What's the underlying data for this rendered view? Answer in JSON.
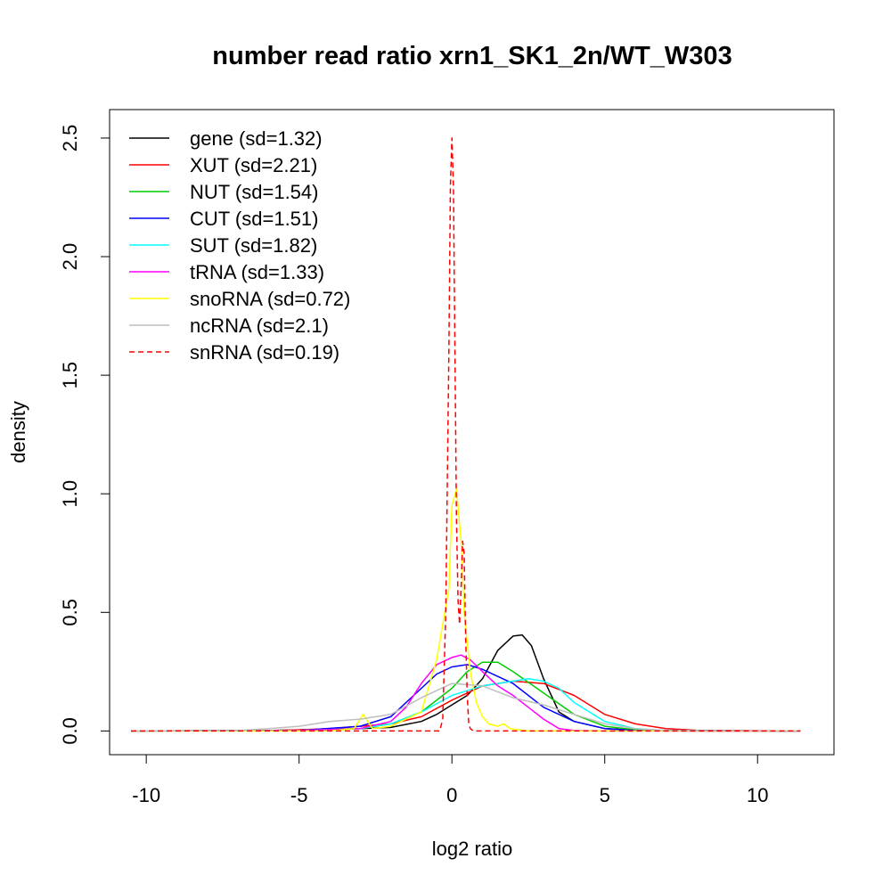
{
  "chart_data": {
    "type": "line",
    "title": "number read ratio xrn1_SK1_2n/WT_W303",
    "xlabel": "log2 ratio",
    "ylabel": "density",
    "xlim": [
      -11.2,
      12.5
    ],
    "ylim": [
      -0.1,
      2.62
    ],
    "x_ticks": [
      -10,
      -5,
      0,
      5,
      10
    ],
    "y_ticks": [
      0.0,
      0.5,
      1.0,
      1.5,
      2.0,
      2.5
    ],
    "x_tick_labels": [
      "-10",
      "-5",
      "0",
      "5",
      "10"
    ],
    "y_tick_labels": [
      "0.0",
      "0.5",
      "1.0",
      "1.5",
      "2.0",
      "2.5"
    ],
    "legend_position": "top-left",
    "grid": false,
    "series": [
      {
        "name": "gene (sd=1.32)",
        "color": "#000000",
        "dash": false,
        "x": [
          -10.5,
          -6,
          -3,
          -2,
          -1,
          -0.5,
          0,
          0.5,
          1,
          1.5,
          2,
          2.3,
          2.6,
          3,
          3.5,
          4,
          5,
          6,
          7,
          8,
          11.4
        ],
        "y": [
          0,
          0.002,
          0.01,
          0.015,
          0.04,
          0.07,
          0.11,
          0.15,
          0.22,
          0.34,
          0.4,
          0.405,
          0.36,
          0.22,
          0.08,
          0.04,
          0.01,
          0.004,
          0.001,
          0,
          0
        ]
      },
      {
        "name": "XUT (sd=2.21)",
        "color": "#ff0000",
        "dash": false,
        "x": [
          -10.5,
          -6,
          -5,
          -4,
          -3,
          -2,
          -1,
          0,
          1,
          2,
          3,
          4,
          5,
          6,
          7,
          8,
          11.4
        ],
        "y": [
          0,
          0.002,
          0.005,
          0.01,
          0.02,
          0.03,
          0.06,
          0.13,
          0.19,
          0.21,
          0.2,
          0.15,
          0.07,
          0.03,
          0.01,
          0.003,
          0
        ]
      },
      {
        "name": "NUT (sd=1.54)",
        "color": "#00cd00",
        "dash": false,
        "x": [
          -10.5,
          -5,
          -3,
          -2,
          -1,
          0,
          0.5,
          1,
          1.5,
          2,
          3,
          4,
          5,
          6,
          7,
          11.4
        ],
        "y": [
          0,
          0.002,
          0.01,
          0.03,
          0.08,
          0.18,
          0.25,
          0.29,
          0.29,
          0.25,
          0.16,
          0.07,
          0.02,
          0.005,
          0.001,
          0
        ]
      },
      {
        "name": "CUT (sd=1.51)",
        "color": "#0000ff",
        "dash": false,
        "x": [
          -10.5,
          -5,
          -3,
          -2,
          -1,
          -0.5,
          0,
          0.5,
          1,
          1.5,
          2,
          3,
          4,
          5,
          6,
          11.4
        ],
        "y": [
          0,
          0.002,
          0.02,
          0.06,
          0.18,
          0.24,
          0.27,
          0.28,
          0.26,
          0.23,
          0.2,
          0.1,
          0.04,
          0.01,
          0.002,
          0
        ]
      },
      {
        "name": "SUT (sd=1.82)",
        "color": "#00ffff",
        "dash": false,
        "x": [
          -10.5,
          -5,
          -3,
          -2,
          -1,
          0,
          1,
          2,
          2.5,
          3,
          3.5,
          4,
          5,
          6,
          7,
          11.4
        ],
        "y": [
          0,
          0.002,
          0.01,
          0.03,
          0.08,
          0.15,
          0.19,
          0.21,
          0.22,
          0.21,
          0.18,
          0.12,
          0.04,
          0.01,
          0.002,
          0
        ]
      },
      {
        "name": "tRNA (sd=1.33)",
        "color": "#ff00ff",
        "dash": false,
        "x": [
          -10.5,
          -5,
          -3,
          -2,
          -1.5,
          -1,
          -0.5,
          0,
          0.3,
          0.6,
          1,
          1.5,
          2,
          2.5,
          3,
          3.5,
          4,
          5,
          11.4
        ],
        "y": [
          0,
          0.002,
          0.01,
          0.04,
          0.1,
          0.2,
          0.28,
          0.31,
          0.32,
          0.3,
          0.25,
          0.19,
          0.15,
          0.1,
          0.05,
          0.01,
          0.002,
          0,
          0
        ]
      },
      {
        "name": "snoRNA (sd=0.72)",
        "color": "#ffff00",
        "dash": false,
        "x": [
          -10.5,
          -4,
          -3.2,
          -2.9,
          -2.6,
          -2,
          -1,
          -0.5,
          -0.3,
          -0.1,
          0,
          0.15,
          0.3,
          0.4,
          0.6,
          0.8,
          1,
          1.2,
          1.5,
          1.7,
          1.9,
          2.2,
          2.5,
          11.4
        ],
        "y": [
          0,
          0,
          0.01,
          0.07,
          0.01,
          0.02,
          0.08,
          0.3,
          0.45,
          0.6,
          0.95,
          1.02,
          0.8,
          0.5,
          0.25,
          0.12,
          0.06,
          0.03,
          0.02,
          0.03,
          0.01,
          0.005,
          0,
          0
        ]
      },
      {
        "name": "ncRNA (sd=2.1)",
        "color": "#bebebe",
        "dash": false,
        "x": [
          -10.5,
          -7,
          -6,
          -5,
          -4,
          -3,
          -2,
          -1,
          0,
          1,
          2,
          3,
          4,
          5,
          6,
          7,
          11.4
        ],
        "y": [
          0,
          0.002,
          0.01,
          0.02,
          0.04,
          0.05,
          0.07,
          0.14,
          0.2,
          0.19,
          0.14,
          0.11,
          0.07,
          0.03,
          0.01,
          0.002,
          0
        ]
      },
      {
        "name": "snRNA (sd=0.19)",
        "color": "#ff0000",
        "dash": true,
        "x": [
          -10.5,
          -0.4,
          -0.3,
          -0.2,
          -0.1,
          -0.05,
          0,
          0.05,
          0.1,
          0.15,
          0.2,
          0.25,
          0.3,
          0.35,
          0.4,
          0.45,
          0.5,
          0.55,
          0.6,
          0.7,
          11.4
        ],
        "y": [
          0,
          0,
          0.05,
          0.5,
          1.6,
          2.3,
          2.5,
          2.3,
          1.6,
          0.9,
          0.55,
          0.45,
          0.6,
          0.8,
          0.75,
          0.4,
          0.15,
          0.03,
          0.01,
          0,
          0
        ]
      }
    ]
  }
}
